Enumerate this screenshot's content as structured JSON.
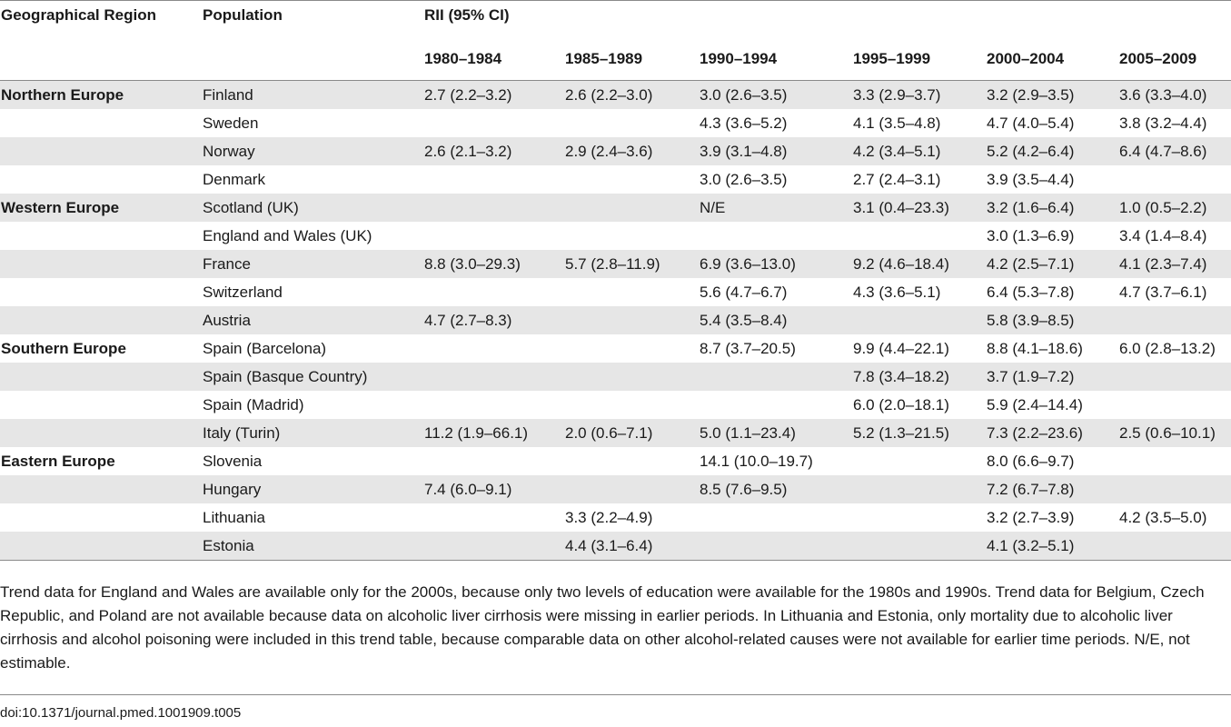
{
  "table": {
    "headers": {
      "region": "Geographical Region",
      "population": "Population",
      "rii": "RII (95% CI)",
      "periods": [
        "1980–1984",
        "1985–1989",
        "1990–1994",
        "1995–1999",
        "2000–2004",
        "2005–2009"
      ]
    },
    "rows": [
      {
        "region": "Northern Europe",
        "population": "Finland",
        "values": [
          "2.7 (2.2–3.2)",
          "2.6 (2.2–3.0)",
          "3.0 (2.6–3.5)",
          "3.3 (2.9–3.7)",
          "3.2 (2.9–3.5)",
          "3.6 (3.3–4.0)"
        ]
      },
      {
        "region": "",
        "population": "Sweden",
        "values": [
          "",
          "",
          "4.3 (3.6–5.2)",
          "4.1 (3.5–4.8)",
          "4.7 (4.0–5.4)",
          "3.8 (3.2–4.4)"
        ]
      },
      {
        "region": "",
        "population": "Norway",
        "values": [
          "2.6 (2.1–3.2)",
          "2.9 (2.4–3.6)",
          "3.9 (3.1–4.8)",
          "4.2 (3.4–5.1)",
          "5.2 (4.2–6.4)",
          "6.4 (4.7–8.6)"
        ]
      },
      {
        "region": "",
        "population": "Denmark",
        "values": [
          "",
          "",
          "3.0 (2.6–3.5)",
          "2.7 (2.4–3.1)",
          "3.9 (3.5–4.4)",
          ""
        ]
      },
      {
        "region": "Western Europe",
        "population": "Scotland (UK)",
        "values": [
          "",
          "",
          "N/E",
          "3.1 (0.4–23.3)",
          "3.2 (1.6–6.4)",
          "1.0 (0.5–2.2)"
        ]
      },
      {
        "region": "",
        "population": "England and Wales (UK)",
        "values": [
          "",
          "",
          "",
          "",
          "3.0 (1.3–6.9)",
          "3.4 (1.4–8.4)"
        ]
      },
      {
        "region": "",
        "population": "France",
        "values": [
          "8.8 (3.0–29.3)",
          "5.7 (2.8–11.9)",
          "6.9 (3.6–13.0)",
          "9.2 (4.6–18.4)",
          "4.2 (2.5–7.1)",
          "4.1 (2.3–7.4)"
        ]
      },
      {
        "region": "",
        "population": "Switzerland",
        "values": [
          "",
          "",
          "5.6 (4.7–6.7)",
          "4.3 (3.6–5.1)",
          "6.4 (5.3–7.8)",
          "4.7 (3.7–6.1)"
        ]
      },
      {
        "region": "",
        "population": "Austria",
        "values": [
          "4.7 (2.7–8.3)",
          "",
          "5.4 (3.5–8.4)",
          "",
          "5.8 (3.9–8.5)",
          ""
        ]
      },
      {
        "region": "Southern Europe",
        "population": "Spain (Barcelona)",
        "values": [
          "",
          "",
          "8.7 (3.7–20.5)",
          "9.9 (4.4–22.1)",
          "8.8 (4.1–18.6)",
          "6.0 (2.8–13.2)"
        ]
      },
      {
        "region": "",
        "population": "Spain (Basque Country)",
        "values": [
          "",
          "",
          "",
          "7.8 (3.4–18.2)",
          "3.7 (1.9–7.2)",
          ""
        ]
      },
      {
        "region": "",
        "population": "Spain (Madrid)",
        "values": [
          "",
          "",
          "",
          "6.0 (2.0–18.1)",
          "5.9 (2.4–14.4)",
          ""
        ]
      },
      {
        "region": "",
        "population": "Italy (Turin)",
        "values": [
          "11.2 (1.9–66.1)",
          "2.0 (0.6–7.1)",
          "5.0 (1.1–23.4)",
          "5.2 (1.3–21.5)",
          "7.3 (2.2–23.6)",
          "2.5 (0.6–10.1)"
        ]
      },
      {
        "region": "Eastern Europe",
        "population": "Slovenia",
        "values": [
          "",
          "",
          "14.1 (10.0–19.7)",
          "",
          "8.0 (6.6–9.7)",
          ""
        ]
      },
      {
        "region": "",
        "population": "Hungary",
        "values": [
          "7.4 (6.0–9.1)",
          "",
          "8.5 (7.6–9.5)",
          "",
          "7.2 (6.7–7.8)",
          ""
        ]
      },
      {
        "region": "",
        "population": "Lithuania",
        "values": [
          "",
          "3.3 (2.2–4.9)",
          "",
          "",
          "3.2 (2.7–3.9)",
          "4.2 (3.5–5.0)"
        ]
      },
      {
        "region": "",
        "population": "Estonia",
        "values": [
          "",
          "4.4 (3.1–6.4)",
          "",
          "",
          "4.1 (3.2–5.1)",
          ""
        ]
      }
    ]
  },
  "footnote": "Trend data for England and Wales are available only for the 2000s, because only two levels of education were available for the 1980s and 1990s. Trend data for Belgium, Czech Republic, and Poland are not available because data on alcoholic liver cirrhosis were missing in earlier periods. In Lithuania and Estonia, only mortality due to alcoholic liver cirrhosis and alcohol poisoning were included in this trend table, because comparable data on other alcohol-related causes were not available for earlier time periods. N/E, not estimable.",
  "doi": "doi:10.1371/journal.pmed.1001909.t005"
}
